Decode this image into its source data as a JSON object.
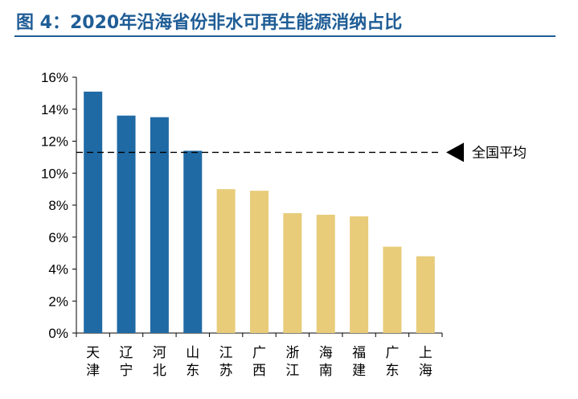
{
  "figure": {
    "title": "图 4：2020年沿海省份非水可再生能源消纳占比"
  },
  "chart_data": {
    "type": "bar",
    "categories": [
      [
        "天",
        "津"
      ],
      [
        "辽",
        "宁"
      ],
      [
        "河",
        "北"
      ],
      [
        "山",
        "东"
      ],
      [
        "江",
        "苏"
      ],
      [
        "广",
        "西"
      ],
      [
        "浙",
        "江"
      ],
      [
        "海",
        "南"
      ],
      [
        "福",
        "建"
      ],
      [
        "广",
        "东"
      ],
      [
        "上",
        "海"
      ]
    ],
    "values": [
      15.1,
      13.6,
      13.5,
      11.4,
      9.0,
      8.9,
      7.5,
      7.4,
      7.3,
      5.4,
      4.8
    ],
    "bar_colors": [
      "#1f6aa5",
      "#1f6aa5",
      "#1f6aa5",
      "#1f6aa5",
      "#e8cc7a",
      "#e8cc7a",
      "#e8cc7a",
      "#e8cc7a",
      "#e8cc7a",
      "#e8cc7a",
      "#e8cc7a"
    ],
    "ylim": [
      0,
      16
    ],
    "ytick_step": 2,
    "ytick_suffix": "%",
    "grid": false,
    "reference_line": {
      "value": 11.3,
      "label": "全国平均",
      "style": "dashed",
      "marker": "left-triangle"
    }
  }
}
